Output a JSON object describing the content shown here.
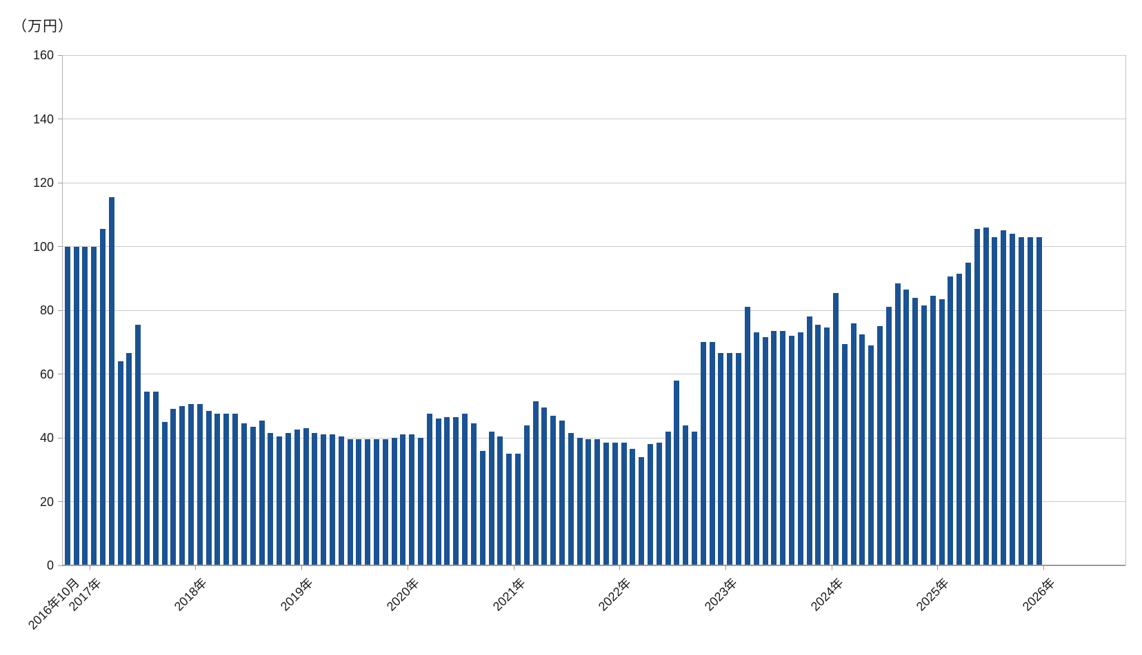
{
  "chart_data": {
    "type": "bar",
    "title": "",
    "unit_label": "（万円）",
    "xlabel": "",
    "ylabel": "（万円）",
    "ylim": [
      0,
      160
    ],
    "ytick_step": 20,
    "ytick_labels": [
      "0",
      "20",
      "40",
      "60",
      "80",
      "100",
      "120",
      "140",
      "160"
    ],
    "x_tick_labels": [
      "2016年10月",
      "2017年",
      "2018年",
      "2019年",
      "2020年",
      "2021年",
      "2022年",
      "2023年",
      "2024年",
      "2025年",
      "2026年"
    ],
    "grid": true,
    "legend": "none",
    "bar_color": "#1b5293",
    "gridline_color": "#c9c9c9",
    "axis_color": "#9a9a9a",
    "text_color": "#1a1a1a",
    "frequency": "monthly",
    "start_month": "2016-10",
    "months": [
      "2016-10",
      "2016-11",
      "2016-12",
      "2017-01",
      "2017-02",
      "2017-03",
      "2017-04",
      "2017-05",
      "2017-06",
      "2017-07",
      "2017-08",
      "2017-09",
      "2017-10",
      "2017-11",
      "2017-12",
      "2018-01",
      "2018-02",
      "2018-03",
      "2018-04",
      "2018-05",
      "2018-06",
      "2018-07",
      "2018-08",
      "2018-09",
      "2018-10",
      "2018-11",
      "2018-12",
      "2019-01",
      "2019-02",
      "2019-03",
      "2019-04",
      "2019-05",
      "2019-06",
      "2019-07",
      "2019-08",
      "2019-09",
      "2019-10",
      "2019-11",
      "2019-12",
      "2020-01",
      "2020-02",
      "2020-03",
      "2020-04",
      "2020-05",
      "2020-06",
      "2020-07",
      "2020-08",
      "2020-09",
      "2020-10",
      "2020-11",
      "2020-12",
      "2021-01",
      "2021-02",
      "2021-03",
      "2021-04",
      "2021-05",
      "2021-06",
      "2021-07",
      "2021-08",
      "2021-09",
      "2021-10",
      "2021-11",
      "2021-12",
      "2022-01",
      "2022-02",
      "2022-03",
      "2022-04",
      "2022-05",
      "2022-06",
      "2022-07",
      "2022-08",
      "2022-09",
      "2022-10",
      "2022-11",
      "2022-12",
      "2023-01",
      "2023-02",
      "2023-03",
      "2023-04",
      "2023-05",
      "2023-06",
      "2023-07",
      "2023-08",
      "2023-09",
      "2023-10",
      "2023-11",
      "2023-12",
      "2024-01",
      "2024-02",
      "2024-03",
      "2024-04",
      "2024-05",
      "2024-06",
      "2024-07",
      "2024-08",
      "2024-09",
      "2024-10",
      "2024-11",
      "2024-12",
      "2025-01",
      "2025-02",
      "2025-03",
      "2025-04",
      "2025-05",
      "2025-06",
      "2025-07",
      "2025-08",
      "2025-09",
      "2025-10",
      "2025-11",
      "2025-12"
    ],
    "values": [
      100,
      100,
      100,
      100,
      105.5,
      115.5,
      64,
      66.5,
      75.5,
      54.5,
      54.5,
      45,
      49,
      50,
      50.5,
      50.5,
      48.5,
      47.5,
      47.5,
      47.5,
      44.5,
      43.5,
      45.5,
      41.5,
      40.5,
      41.5,
      42.5,
      43,
      41.5,
      41,
      41,
      40.5,
      39.5,
      39.5,
      39.5,
      39.5,
      39.5,
      40,
      41,
      41,
      40,
      47.5,
      46,
      46.5,
      46.5,
      47.5,
      44.5,
      36,
      42,
      40.5,
      35,
      35,
      44,
      51.5,
      49.5,
      47,
      45.5,
      41.5,
      40,
      39.5,
      39.5,
      38.5,
      38.5,
      38.5,
      36.5,
      34,
      38,
      38.5,
      42,
      58,
      44,
      42,
      70,
      70,
      66.5,
      66.5,
      66.5,
      81,
      73,
      71.5,
      73.5,
      73.5,
      72,
      73,
      78,
      75.5,
      74.5,
      85.5,
      69.5,
      76,
      72.5,
      69,
      75,
      81,
      88.5,
      86.5,
      84,
      81.5,
      84.5,
      83.5,
      90.5,
      91.5,
      95,
      105.5,
      106,
      103,
      105,
      104,
      103,
      103,
      103
    ]
  }
}
